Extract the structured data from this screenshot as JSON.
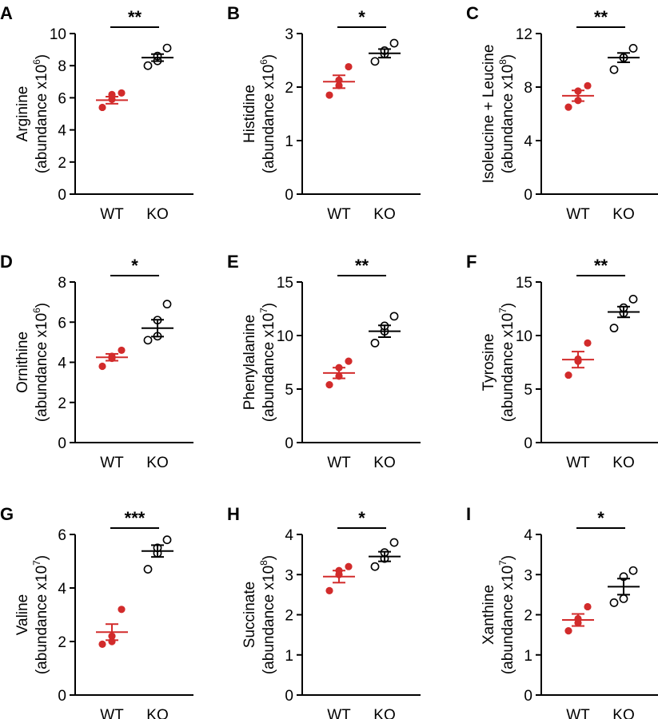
{
  "colors": {
    "wt": "#d22b2b",
    "ko": "#000000",
    "axis": "#000000"
  },
  "chart_data": [
    {
      "type": "scatter",
      "panel": "A",
      "ylabel_line1": "Arginine",
      "ylabel_line2": "(abundance x10",
      "exponent": "6",
      "ylabel_close": ")",
      "categories": [
        "WT",
        "KO"
      ],
      "ylim": [
        0,
        10
      ],
      "yticks": [
        "0",
        "2",
        "4",
        "6",
        "8",
        "10"
      ],
      "significance": "**",
      "series": [
        {
          "name": "WT",
          "points": [
            5.4,
            5.9,
            6.2,
            6.3
          ],
          "mean": 5.85,
          "sem": 0.22
        },
        {
          "name": "KO",
          "points": [
            8.0,
            8.3,
            8.6,
            9.1
          ],
          "mean": 8.5,
          "sem": 0.22
        }
      ]
    },
    {
      "type": "scatter",
      "panel": "B",
      "ylabel_line1": "Histidine",
      "ylabel_line2": "(abundance x10",
      "exponent": "6",
      "ylabel_close": ")",
      "categories": [
        "WT",
        "KO"
      ],
      "ylim": [
        0,
        3
      ],
      "yticks": [
        "0",
        "1",
        "2",
        "3"
      ],
      "significance": "*",
      "series": [
        {
          "name": "WT",
          "points": [
            1.85,
            2.03,
            2.13,
            2.38
          ],
          "mean": 2.1,
          "sem": 0.12
        },
        {
          "name": "KO",
          "points": [
            2.48,
            2.62,
            2.68,
            2.82
          ],
          "mean": 2.63,
          "sem": 0.08
        }
      ]
    },
    {
      "type": "scatter",
      "panel": "C",
      "ylabel_line1": "Isoleucine + Leucine",
      "ylabel_line2": "(abundance x10",
      "exponent": "8",
      "ylabel_close": ")",
      "categories": [
        "WT",
        "KO"
      ],
      "ylim": [
        0,
        12
      ],
      "yticks": [
        "0",
        "4",
        "8",
        "12"
      ],
      "significance": "**",
      "series": [
        {
          "name": "WT",
          "points": [
            6.5,
            7.0,
            7.7,
            8.1
          ],
          "mean": 7.35,
          "sem": 0.4
        },
        {
          "name": "KO",
          "points": [
            9.3,
            10.2,
            10.2,
            10.9
          ],
          "mean": 10.2,
          "sem": 0.35
        }
      ]
    },
    {
      "type": "scatter",
      "panel": "D",
      "ylabel_line1": "Ornithine",
      "ylabel_line2": "(abundance x10",
      "exponent": "6",
      "ylabel_close": ")",
      "categories": [
        "WT",
        "KO"
      ],
      "ylim": [
        0,
        8
      ],
      "yticks": [
        "0",
        "2",
        "4",
        "6",
        "8"
      ],
      "significance": "*",
      "series": [
        {
          "name": "WT",
          "points": [
            3.8,
            4.2,
            4.3,
            4.6
          ],
          "mean": 4.25,
          "sem": 0.17
        },
        {
          "name": "KO",
          "points": [
            5.1,
            5.3,
            6.1,
            6.9
          ],
          "mean": 5.7,
          "sem": 0.42
        }
      ]
    },
    {
      "type": "scatter",
      "panel": "E",
      "ylabel_line1": "Phenylalanine",
      "ylabel_line2": "(abundance x10",
      "exponent": "7",
      "ylabel_close": ")",
      "categories": [
        "WT",
        "KO"
      ],
      "ylim": [
        0,
        15
      ],
      "yticks": [
        "0",
        "5",
        "10",
        "15"
      ],
      "significance": "**",
      "series": [
        {
          "name": "WT",
          "points": [
            5.4,
            6.2,
            7.0,
            7.6
          ],
          "mean": 6.5,
          "sem": 0.5
        },
        {
          "name": "KO",
          "points": [
            9.3,
            10.4,
            10.9,
            11.8
          ],
          "mean": 10.4,
          "sem": 0.55
        }
      ]
    },
    {
      "type": "scatter",
      "panel": "F",
      "ylabel_line1": "Tyrosine",
      "ylabel_line2": "(abundance x10",
      "exponent": "7",
      "ylabel_close": ")",
      "categories": [
        "WT",
        "KO"
      ],
      "ylim": [
        0,
        15
      ],
      "yticks": [
        "0",
        "5",
        "10",
        "15"
      ],
      "significance": "**",
      "series": [
        {
          "name": "WT",
          "points": [
            6.3,
            7.6,
            7.8,
            9.3
          ],
          "mean": 7.75,
          "sem": 0.75
        },
        {
          "name": "KO",
          "points": [
            10.7,
            12.1,
            12.6,
            13.4
          ],
          "mean": 12.2,
          "sem": 0.5
        }
      ]
    },
    {
      "type": "scatter",
      "panel": "G",
      "ylabel_line1": "Valine",
      "ylabel_line2": "(abundance x10",
      "exponent": "7",
      "ylabel_close": ")",
      "categories": [
        "WT",
        "KO"
      ],
      "ylim": [
        0,
        6
      ],
      "yticks": [
        "0",
        "2",
        "4",
        "6"
      ],
      "significance": "***",
      "series": [
        {
          "name": "WT",
          "points": [
            1.9,
            2.0,
            2.2,
            3.2
          ],
          "mean": 2.35,
          "sem": 0.3
        },
        {
          "name": "KO",
          "points": [
            4.7,
            5.3,
            5.5,
            5.8
          ],
          "mean": 5.38,
          "sem": 0.22
        }
      ]
    },
    {
      "type": "scatter",
      "panel": "H",
      "ylabel_line1": "Succinate",
      "ylabel_line2": "(abundance x10",
      "exponent": "8",
      "ylabel_close": ")",
      "categories": [
        "WT",
        "KO"
      ],
      "ylim": [
        0,
        4
      ],
      "yticks": [
        "0",
        "1",
        "2",
        "3",
        "4"
      ],
      "significance": "*",
      "series": [
        {
          "name": "WT",
          "points": [
            2.6,
            3.0,
            3.1,
            3.2
          ],
          "mean": 2.95,
          "sem": 0.15
        },
        {
          "name": "KO",
          "points": [
            3.2,
            3.4,
            3.55,
            3.8
          ],
          "mean": 3.45,
          "sem": 0.12
        }
      ]
    },
    {
      "type": "scatter",
      "panel": "I",
      "ylabel_line1": "Xanthine",
      "ylabel_line2": "(abundance x10",
      "exponent": "7",
      "ylabel_close": ")",
      "categories": [
        "WT",
        "KO"
      ],
      "ylim": [
        0,
        4
      ],
      "yticks": [
        "0",
        "1",
        "2",
        "3",
        "4"
      ],
      "significance": "*",
      "series": [
        {
          "name": "WT",
          "points": [
            1.6,
            1.8,
            1.9,
            2.2
          ],
          "mean": 1.87,
          "sem": 0.15
        },
        {
          "name": "KO",
          "points": [
            2.3,
            2.4,
            2.95,
            3.1
          ],
          "mean": 2.7,
          "sem": 0.2
        }
      ]
    }
  ]
}
